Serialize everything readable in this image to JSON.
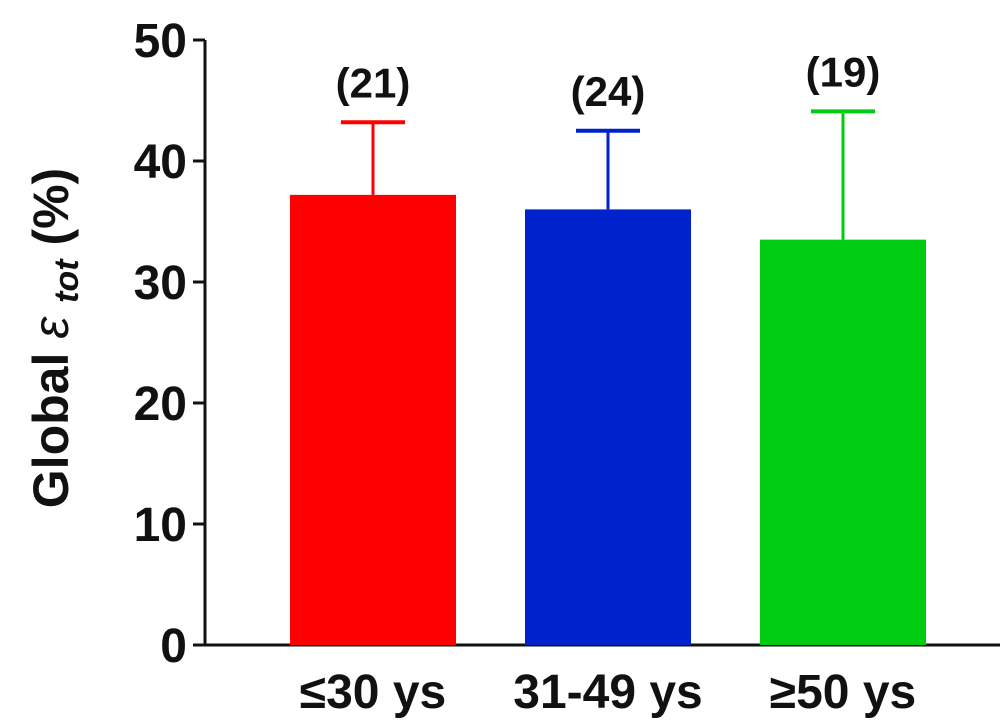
{
  "chart_data": {
    "type": "bar",
    "categories": [
      "≤30 ys",
      "31-49 ys",
      "≥50 ys"
    ],
    "values": [
      37.2,
      36.0,
      33.5
    ],
    "error_upper": [
      43.2,
      42.5,
      44.1
    ],
    "n_labels": [
      "(21)",
      "(24)",
      "(19)"
    ],
    "colors": [
      "#ff0000",
      "#0022cc",
      "#00cc11"
    ],
    "ylabel": {
      "prefix": "Global ",
      "symbol": "ε",
      "subscript": "tot",
      "suffix": " (%)"
    },
    "xlabel": "",
    "title": "",
    "ylim": [
      0,
      50
    ],
    "yticks": [
      0,
      10,
      20,
      30,
      40,
      50
    ],
    "grid": false,
    "legend": "none"
  }
}
